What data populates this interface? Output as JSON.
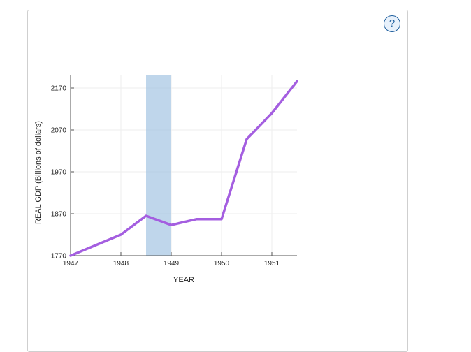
{
  "help": {
    "icon": "help-icon",
    "label": "?"
  },
  "chart_data": {
    "type": "line",
    "title": "",
    "xlabel": "YEAR",
    "ylabel": "REAL GDP (Billions of dollars)",
    "xlim": [
      1947,
      1951.5
    ],
    "ylim": [
      1770,
      2200
    ],
    "xticks": [
      1947,
      1948,
      1949,
      1950,
      1951
    ],
    "yticks": [
      1770,
      1870,
      1970,
      2070,
      2170
    ],
    "grid": true,
    "recession_band": {
      "x_start": 1948.5,
      "x_end": 1949.0,
      "color": "#9cc0e0"
    },
    "series": [
      {
        "color": "#a45ee0",
        "x": [
          1947.0,
          1947.5,
          1948.0,
          1948.5,
          1949.0,
          1949.5,
          1950.0,
          1950.5,
          1951.0,
          1951.5
        ],
        "y": [
          1770,
          1795,
          1820,
          1865,
          1843,
          1857,
          1857,
          2048,
          2110,
          2186
        ]
      }
    ]
  }
}
